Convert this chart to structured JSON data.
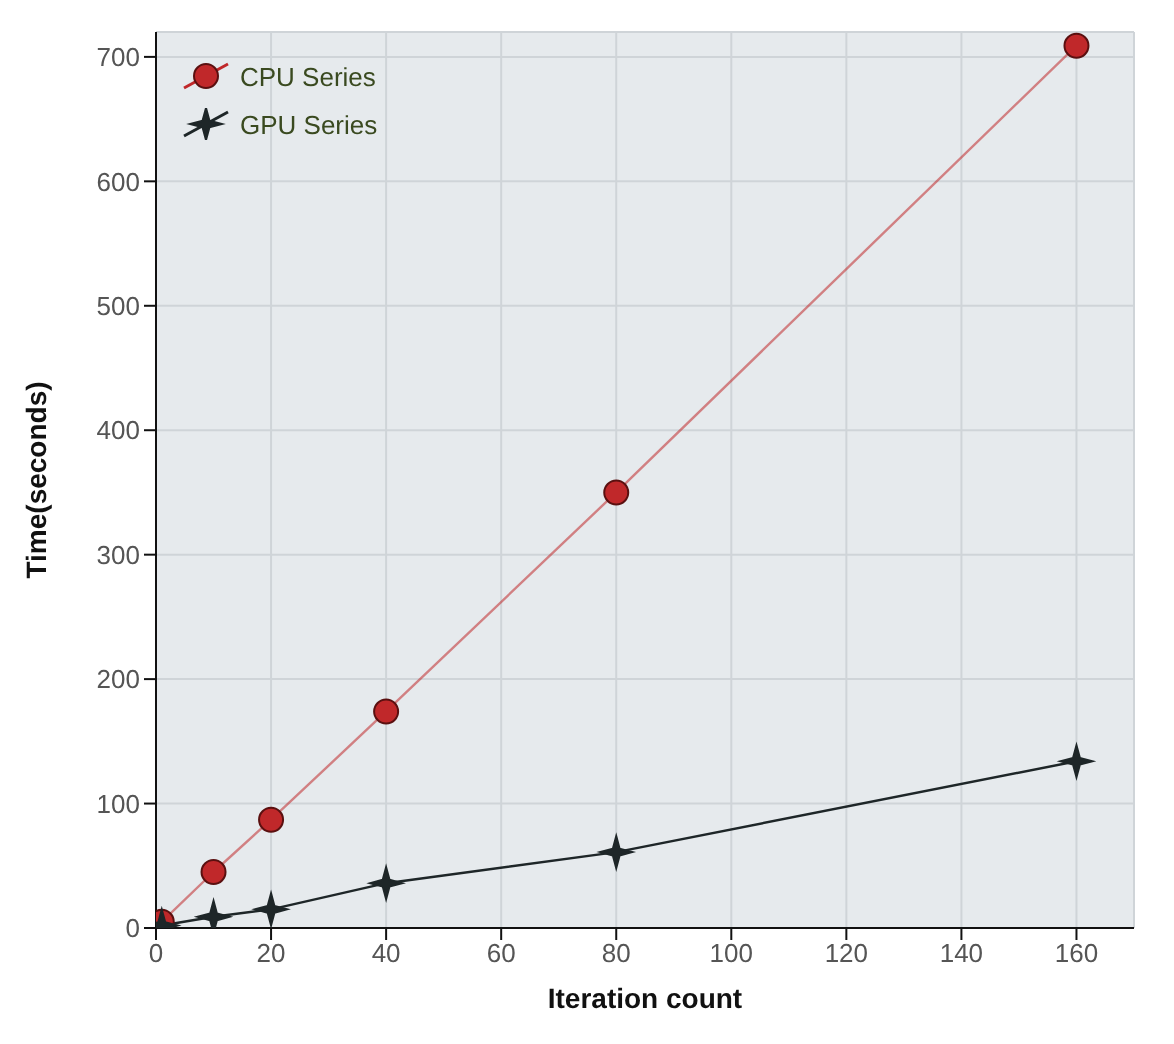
{
  "chart_data": {
    "type": "line",
    "xlabel": "Iteration count",
    "ylabel": "Time(seconds)",
    "xlim": [
      0,
      170
    ],
    "xticks": [
      0,
      20,
      40,
      60,
      80,
      100,
      120,
      140,
      160
    ],
    "ylim": [
      0,
      720
    ],
    "yticks": [
      0,
      100,
      200,
      300,
      400,
      500,
      600,
      700
    ],
    "grid": true,
    "legend": "top left",
    "series": [
      {
        "name": "CPU Series",
        "color": "#c0282a",
        "marker": "circle",
        "x": [
          1,
          10,
          20,
          40,
          80,
          160
        ],
        "values": [
          5,
          45,
          87,
          174,
          350,
          709
        ]
      },
      {
        "name": "GPU Series",
        "color": "#1e2628",
        "marker": "star",
        "x": [
          1,
          10,
          20,
          40,
          80,
          160
        ],
        "values": [
          2,
          9,
          15,
          36,
          61,
          134
        ]
      }
    ]
  }
}
